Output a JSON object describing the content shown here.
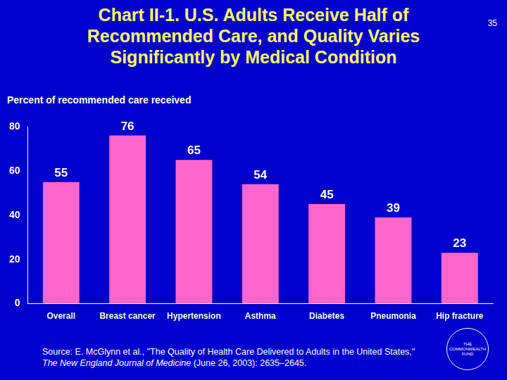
{
  "chart_data": {
    "type": "bar",
    "title": "Chart II-1. U.S. Adults Receive Half of Recommended Care, and Quality Varies Significantly by Medical Condition",
    "page_number": "35",
    "y_label": "Percent of recommended care received",
    "categories": [
      "Overall",
      "Breast cancer",
      "Hypertension",
      "Asthma",
      "Diabetes",
      "Pneumonia",
      "Hip fracture"
    ],
    "values": [
      55,
      76,
      65,
      54,
      45,
      39,
      23
    ],
    "color": "#ff66cc",
    "ylim": [
      0,
      80
    ],
    "yticks": [
      0,
      20,
      40,
      60,
      80
    ],
    "grid": false,
    "data_labels": true,
    "source": {
      "text": "Source: E. McGlynn et al., \"The Quality of Health Care Delivered to Adults in the United States,\"",
      "journal": "The New England Journal of Medicine",
      "details": "(June 26, 2003): 2635–2645."
    },
    "logo": [
      "THE",
      "COMMONWEALTH",
      "FUND"
    ]
  }
}
